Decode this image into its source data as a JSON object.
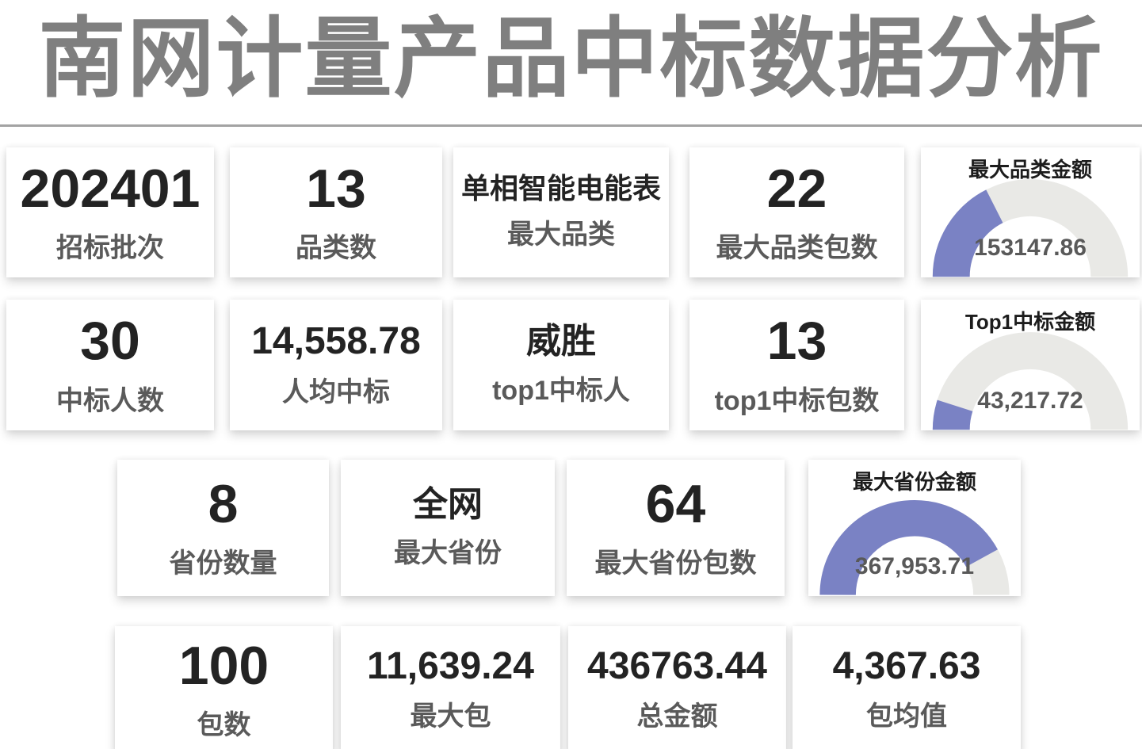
{
  "page_title": "南网计量产品中标数据分析",
  "colors": {
    "accent": "#7a82c4",
    "track": "#e9e9e6",
    "value_text": "#232323",
    "label_text": "#5a5a5a",
    "gauge_value_text": "#595959",
    "title_text": "#7f7f7f"
  },
  "rows": [
    {
      "cards": [
        {
          "type": "stat",
          "value": "202401",
          "label": "招标批次"
        },
        {
          "type": "stat",
          "value": "13",
          "label": "品类数"
        },
        {
          "type": "stat",
          "value": "单相智能电能表",
          "label": "最大品类"
        },
        {
          "type": "stat",
          "value": "22",
          "label": "最大品类包数"
        },
        {
          "type": "gauge",
          "title": "最大品类金额",
          "value": "153147.86",
          "percent": 35.1
        }
      ]
    },
    {
      "cards": [
        {
          "type": "stat",
          "value": "30",
          "label": "中标人数"
        },
        {
          "type": "stat",
          "value": "14,558.78",
          "label": "人均中标"
        },
        {
          "type": "stat",
          "value": "威胜",
          "label": "top1中标人"
        },
        {
          "type": "stat",
          "value": "13",
          "label": "top1中标包数"
        },
        {
          "type": "gauge",
          "title": "Top1中标金额",
          "value": "43,217.72",
          "percent": 9.9
        }
      ]
    },
    {
      "cards": [
        {
          "type": "stat",
          "value": "8",
          "label": "省份数量"
        },
        {
          "type": "stat",
          "value": "全网",
          "label": "最大省份"
        },
        {
          "type": "stat",
          "value": "64",
          "label": "最大省份包数"
        },
        {
          "type": "gauge",
          "title": "最大省份金额",
          "value": "367,953.71",
          "percent": 84.2
        }
      ]
    },
    {
      "cards": [
        {
          "type": "stat",
          "value": "100",
          "label": "包数"
        },
        {
          "type": "stat",
          "value": "11,639.24",
          "label": "最大包"
        },
        {
          "type": "stat",
          "value": "436763.44",
          "label": "总金额"
        },
        {
          "type": "stat",
          "value": "4,367.63",
          "label": "包均值"
        }
      ]
    }
  ],
  "chart_data": [
    {
      "type": "gauge",
      "title": "最大品类金额",
      "value": 153147.86,
      "max": 436763.44,
      "percent_filled": 35.1
    },
    {
      "type": "gauge",
      "title": "Top1中标金额",
      "value": 43217.72,
      "max": 436763.44,
      "percent_filled": 9.9
    },
    {
      "type": "gauge",
      "title": "最大省份金额",
      "value": 367953.71,
      "max": 436763.44,
      "percent_filled": 84.2
    }
  ]
}
